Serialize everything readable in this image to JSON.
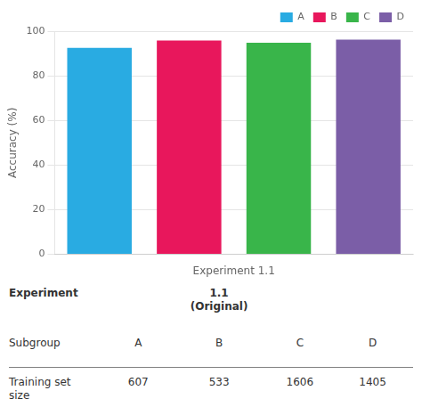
{
  "chart_data": {
    "type": "bar",
    "categories": [
      null,
      null,
      null,
      null
    ],
    "series": [
      {
        "name": "A",
        "color": "#29ABE2",
        "values": [
          92.5,
          null,
          null,
          null
        ]
      },
      {
        "name": "B",
        "color": "#E8175C",
        "values": [
          null,
          95.8,
          null,
          null
        ]
      },
      {
        "name": "C",
        "color": "#39B54A",
        "values": [
          null,
          null,
          94.8,
          null
        ]
      },
      {
        "name": "D",
        "color": "#7B5EA7",
        "values": [
          null,
          null,
          null,
          96.2
        ]
      }
    ],
    "x_label": "Experiment 1.1",
    "y_label": "Accuracy (%)",
    "ylim": [
      0,
      100
    ],
    "yticks": [
      0,
      20,
      40,
      60,
      80,
      100
    ],
    "grid": true,
    "legend": "upper right",
    "tick_labels": "y",
    "table": [
      [
        "Experiment",
        "1.1\n(Original)"
      ],
      [
        "Subgroup",
        "A",
        "B",
        "C",
        "D"
      ],
      [
        "Training set\nsize",
        "607",
        "533",
        "1606",
        "1405"
      ]
    ]
  }
}
